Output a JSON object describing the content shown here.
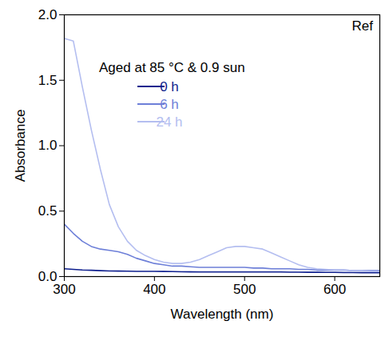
{
  "chart_data": {
    "type": "line",
    "x_label": "Wavelength (nm)",
    "y_label": "Absorbance",
    "annotations": [
      "Ref",
      "Aged at 85 °C & 0.9 sun"
    ],
    "legend": "upper left",
    "x": [
      300,
      310,
      320,
      330,
      340,
      350,
      360,
      370,
      380,
      390,
      400,
      410,
      420,
      430,
      440,
      450,
      460,
      470,
      480,
      490,
      500,
      510,
      520,
      530,
      540,
      550,
      560,
      570,
      580,
      590,
      600,
      610,
      620,
      630,
      640,
      650
    ],
    "series": [
      {
        "name": "0 h",
        "color": "#0e1f8e",
        "values": [
          0.06,
          0.055,
          0.05,
          0.048,
          0.045,
          0.043,
          0.042,
          0.041,
          0.04,
          0.04,
          0.04,
          0.039,
          0.038,
          0.037,
          0.036,
          0.035,
          0.035,
          0.035,
          0.035,
          0.035,
          0.035,
          0.035,
          0.035,
          0.035,
          0.035,
          0.034,
          0.034,
          0.033,
          0.033,
          0.032,
          0.032,
          0.031,
          0.031,
          0.03,
          0.03,
          0.03
        ]
      },
      {
        "name": "6 h",
        "color": "#6d7fd8",
        "values": [
          0.4,
          0.33,
          0.27,
          0.23,
          0.21,
          0.2,
          0.19,
          0.17,
          0.14,
          0.12,
          0.1,
          0.09,
          0.08,
          0.08,
          0.075,
          0.07,
          0.07,
          0.07,
          0.07,
          0.07,
          0.07,
          0.065,
          0.065,
          0.06,
          0.06,
          0.06,
          0.055,
          0.055,
          0.05,
          0.05,
          0.05,
          0.05,
          0.045,
          0.045,
          0.045,
          0.045
        ]
      },
      {
        "name": "24 h",
        "color": "#b4bef0",
        "values": [
          1.82,
          1.8,
          1.45,
          1.12,
          0.82,
          0.55,
          0.38,
          0.27,
          0.2,
          0.16,
          0.13,
          0.11,
          0.1,
          0.1,
          0.11,
          0.13,
          0.16,
          0.19,
          0.22,
          0.23,
          0.23,
          0.22,
          0.21,
          0.18,
          0.15,
          0.12,
          0.09,
          0.07,
          0.06,
          0.055,
          0.05,
          0.05,
          0.045,
          0.045,
          0.04,
          0.04
        ]
      }
    ],
    "xlim": [
      300,
      650
    ],
    "xticks": [
      300,
      400,
      500,
      600
    ],
    "ylim": [
      0,
      2
    ],
    "yticks": [
      {
        "value": 0,
        "label": "0.0"
      },
      {
        "value": 0.5,
        "label": "0.5"
      },
      {
        "value": 1,
        "label": "1.0"
      },
      {
        "value": 1.5,
        "label": "1.5"
      },
      {
        "value": 2,
        "label": "2.0"
      }
    ],
    "grid": false
  }
}
